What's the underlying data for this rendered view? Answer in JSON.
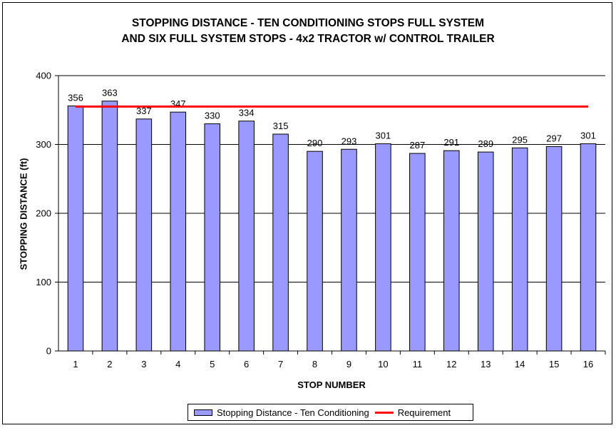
{
  "chart_data": {
    "type": "bar",
    "title_lines": [
      "STOPPING DISTANCE - TEN CONDITIONING STOPS FULL SYSTEM",
      "AND SIX FULL SYSTEM STOPS - 4x2 TRACTOR w/ CONTROL TRAILER"
    ],
    "xlabel": "STOP NUMBER",
    "ylabel": "STOPPING DISTANCE (ft)",
    "categories": [
      "1",
      "2",
      "3",
      "4",
      "5",
      "6",
      "7",
      "8",
      "9",
      "10",
      "11",
      "12",
      "13",
      "14",
      "15",
      "16"
    ],
    "series": [
      {
        "name": "Stopping Distance - Ten Conditioning",
        "type": "bar",
        "color": "#9999ff",
        "values": [
          356,
          363,
          337,
          347,
          330,
          334,
          315,
          290,
          293,
          301,
          287,
          291,
          289,
          295,
          297,
          301
        ]
      },
      {
        "name": "Requirement",
        "type": "line",
        "color": "#ff0000",
        "value": 355
      }
    ],
    "ylim": [
      0,
      400
    ],
    "yticks": [
      0,
      100,
      200,
      300,
      400
    ],
    "grid": true,
    "legend_position": "bottom"
  }
}
